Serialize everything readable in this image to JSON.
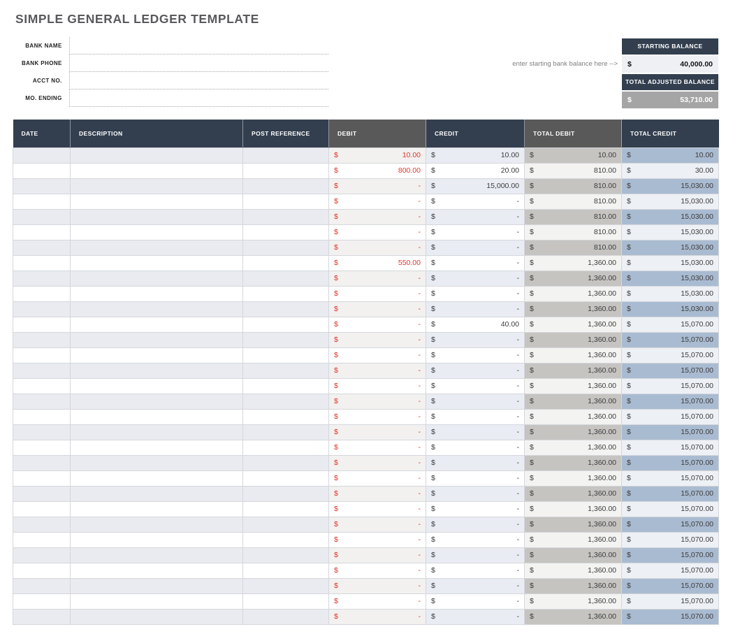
{
  "page": {
    "title": "SIMPLE GENERAL LEDGER TEMPLATE"
  },
  "form": {
    "fields": [
      {
        "label": "BANK NAME",
        "value": ""
      },
      {
        "label": "BANK PHONE",
        "value": ""
      },
      {
        "label": "ACCT NO.",
        "value": ""
      },
      {
        "label": "MO. ENDING",
        "value": ""
      }
    ]
  },
  "balances": {
    "hint": "enter starting bank balance here -->",
    "starting": {
      "label": "STARTING BALANCE",
      "currency": "$",
      "value": "40,000.00"
    },
    "adjusted": {
      "label": "TOTAL ADJUSTED BALANCE",
      "currency": "$",
      "value": "53,710.00"
    }
  },
  "ledger": {
    "columns": [
      "DATE",
      "DESCRIPTION",
      "POST REFERENCE",
      "DEBIT",
      "CREDIT",
      "TOTAL DEBIT",
      "TOTAL CREDIT"
    ],
    "currency": "$",
    "rows": [
      {
        "date": "",
        "description": "",
        "post_reference": "",
        "debit": "10.00",
        "credit": "10.00",
        "total_debit": "10.00",
        "total_credit": "10.00"
      },
      {
        "date": "",
        "description": "",
        "post_reference": "",
        "debit": "800.00",
        "credit": "20.00",
        "total_debit": "810.00",
        "total_credit": "30.00"
      },
      {
        "date": "",
        "description": "",
        "post_reference": "",
        "debit": "-",
        "credit": "15,000.00",
        "total_debit": "810.00",
        "total_credit": "15,030.00"
      },
      {
        "date": "",
        "description": "",
        "post_reference": "",
        "debit": "-",
        "credit": "-",
        "total_debit": "810.00",
        "total_credit": "15,030.00"
      },
      {
        "date": "",
        "description": "",
        "post_reference": "",
        "debit": "-",
        "credit": "-",
        "total_debit": "810.00",
        "total_credit": "15,030.00"
      },
      {
        "date": "",
        "description": "",
        "post_reference": "",
        "debit": "-",
        "credit": "-",
        "total_debit": "810.00",
        "total_credit": "15,030.00"
      },
      {
        "date": "",
        "description": "",
        "post_reference": "",
        "debit": "-",
        "credit": "-",
        "total_debit": "810.00",
        "total_credit": "15,030.00"
      },
      {
        "date": "",
        "description": "",
        "post_reference": "",
        "debit": "550.00",
        "credit": "-",
        "total_debit": "1,360.00",
        "total_credit": "15,030.00"
      },
      {
        "date": "",
        "description": "",
        "post_reference": "",
        "debit": "-",
        "credit": "-",
        "total_debit": "1,360.00",
        "total_credit": "15,030.00"
      },
      {
        "date": "",
        "description": "",
        "post_reference": "",
        "debit": "-",
        "credit": "-",
        "total_debit": "1,360.00",
        "total_credit": "15,030.00"
      },
      {
        "date": "",
        "description": "",
        "post_reference": "",
        "debit": "-",
        "credit": "-",
        "total_debit": "1,360.00",
        "total_credit": "15,030.00"
      },
      {
        "date": "",
        "description": "",
        "post_reference": "",
        "debit": "-",
        "credit": "40.00",
        "total_debit": "1,360.00",
        "total_credit": "15,070.00"
      },
      {
        "date": "",
        "description": "",
        "post_reference": "",
        "debit": "-",
        "credit": "-",
        "total_debit": "1,360.00",
        "total_credit": "15,070.00"
      },
      {
        "date": "",
        "description": "",
        "post_reference": "",
        "debit": "-",
        "credit": "-",
        "total_debit": "1,360.00",
        "total_credit": "15,070.00"
      },
      {
        "date": "",
        "description": "",
        "post_reference": "",
        "debit": "-",
        "credit": "-",
        "total_debit": "1,360.00",
        "total_credit": "15,070.00"
      },
      {
        "date": "",
        "description": "",
        "post_reference": "",
        "debit": "-",
        "credit": "-",
        "total_debit": "1,360.00",
        "total_credit": "15,070.00"
      },
      {
        "date": "",
        "description": "",
        "post_reference": "",
        "debit": "-",
        "credit": "-",
        "total_debit": "1,360.00",
        "total_credit": "15,070.00"
      },
      {
        "date": "",
        "description": "",
        "post_reference": "",
        "debit": "-",
        "credit": "-",
        "total_debit": "1,360.00",
        "total_credit": "15,070.00"
      },
      {
        "date": "",
        "description": "",
        "post_reference": "",
        "debit": "-",
        "credit": "-",
        "total_debit": "1,360.00",
        "total_credit": "15,070.00"
      },
      {
        "date": "",
        "description": "",
        "post_reference": "",
        "debit": "-",
        "credit": "-",
        "total_debit": "1,360.00",
        "total_credit": "15,070.00"
      },
      {
        "date": "",
        "description": "",
        "post_reference": "",
        "debit": "-",
        "credit": "-",
        "total_debit": "1,360.00",
        "total_credit": "15,070.00"
      },
      {
        "date": "",
        "description": "",
        "post_reference": "",
        "debit": "-",
        "credit": "-",
        "total_debit": "1,360.00",
        "total_credit": "15,070.00"
      },
      {
        "date": "",
        "description": "",
        "post_reference": "",
        "debit": "-",
        "credit": "-",
        "total_debit": "1,360.00",
        "total_credit": "15,070.00"
      },
      {
        "date": "",
        "description": "",
        "post_reference": "",
        "debit": "-",
        "credit": "-",
        "total_debit": "1,360.00",
        "total_credit": "15,070.00"
      },
      {
        "date": "",
        "description": "",
        "post_reference": "",
        "debit": "-",
        "credit": "-",
        "total_debit": "1,360.00",
        "total_credit": "15,070.00"
      },
      {
        "date": "",
        "description": "",
        "post_reference": "",
        "debit": "-",
        "credit": "-",
        "total_debit": "1,360.00",
        "total_credit": "15,070.00"
      },
      {
        "date": "",
        "description": "",
        "post_reference": "",
        "debit": "-",
        "credit": "-",
        "total_debit": "1,360.00",
        "total_credit": "15,070.00"
      },
      {
        "date": "",
        "description": "",
        "post_reference": "",
        "debit": "-",
        "credit": "-",
        "total_debit": "1,360.00",
        "total_credit": "15,070.00"
      },
      {
        "date": "",
        "description": "",
        "post_reference": "",
        "debit": "-",
        "credit": "-",
        "total_debit": "1,360.00",
        "total_credit": "15,070.00"
      },
      {
        "date": "",
        "description": "",
        "post_reference": "",
        "debit": "-",
        "credit": "-",
        "total_debit": "1,360.00",
        "total_credit": "15,070.00"
      },
      {
        "date": "",
        "description": "",
        "post_reference": "",
        "debit": "-",
        "credit": "-",
        "total_debit": "1,360.00",
        "total_credit": "15,070.00"
      }
    ]
  },
  "colors": {
    "header_navy": "#333f4f",
    "header_gray": "#595959",
    "debit_red": "#e0362c",
    "stripe_blue": "#e9ebf1",
    "total_debit_stripe": "#c5c4c1",
    "total_credit_stripe": "#a9bbd1",
    "adjusted_balance_bg": "#a5a5a5"
  }
}
